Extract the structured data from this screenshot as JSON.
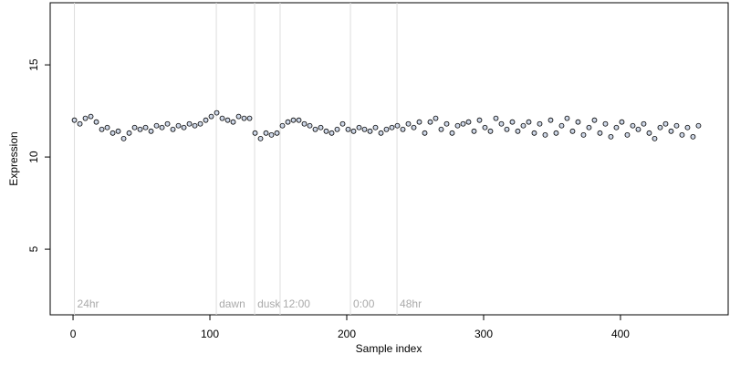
{
  "chart_data": {
    "type": "scatter",
    "x_label": "Sample index",
    "y_label": "Expression",
    "xlim": [
      -16.7,
      478.7
    ],
    "ylim": [
      1.44,
      18.37
    ],
    "xticks": [
      0,
      100,
      200,
      300,
      400
    ],
    "yticks": [
      5,
      10,
      15
    ],
    "color": "#cfd8e8",
    "markers": [
      {
        "x": 1,
        "label": "24hr"
      },
      {
        "x": 104.7,
        "label": "dawn"
      },
      {
        "x": 132.7,
        "label": "dusk"
      },
      {
        "x": 151.3,
        "label": "12:00"
      },
      {
        "x": 202.7,
        "label": "0:00"
      },
      {
        "x": 236.7,
        "label": "48hr"
      }
    ],
    "x": [
      1,
      5,
      9,
      13,
      17,
      21,
      25,
      29,
      33,
      37,
      41,
      45,
      49,
      53,
      57,
      61,
      65,
      69,
      73,
      77,
      81,
      85,
      89,
      93,
      97,
      101,
      105,
      109,
      113,
      117,
      121,
      125,
      129,
      133,
      137,
      141,
      145,
      149,
      153,
      157,
      161,
      165,
      169,
      173,
      177,
      181,
      185,
      189,
      193,
      197,
      201,
      205,
      209,
      213,
      217,
      221,
      225,
      229,
      233,
      237,
      241,
      245,
      249,
      253,
      257,
      261,
      265,
      269,
      273,
      277,
      281,
      285,
      289,
      293,
      297,
      301,
      305,
      309,
      313,
      317,
      321,
      325,
      329,
      333,
      337,
      341,
      345,
      349,
      353,
      357,
      361,
      365,
      369,
      373,
      377,
      381,
      385,
      389,
      393,
      397,
      401,
      405,
      409,
      413,
      417,
      421,
      425,
      429,
      433,
      437,
      441,
      445,
      449,
      453,
      457
    ],
    "y": [
      12.0,
      11.8,
      12.1,
      12.2,
      11.9,
      11.5,
      11.6,
      11.3,
      11.4,
      11.0,
      11.3,
      11.6,
      11.5,
      11.6,
      11.4,
      11.7,
      11.6,
      11.8,
      11.5,
      11.7,
      11.6,
      11.8,
      11.7,
      11.8,
      12.0,
      12.2,
      12.4,
      12.1,
      12.0,
      11.9,
      12.2,
      12.1,
      12.1,
      11.3,
      11.0,
      11.3,
      11.2,
      11.3,
      11.7,
      11.9,
      12.0,
      12.0,
      11.8,
      11.7,
      11.5,
      11.6,
      11.4,
      11.3,
      11.5,
      11.8,
      11.5,
      11.4,
      11.6,
      11.5,
      11.4,
      11.6,
      11.3,
      11.5,
      11.6,
      11.7,
      11.5,
      11.8,
      11.6,
      11.9,
      11.3,
      11.9,
      12.1,
      11.5,
      11.8,
      11.3,
      11.7,
      11.8,
      11.9,
      11.4,
      12.0,
      11.6,
      11.4,
      12.1,
      11.8,
      11.5,
      11.9,
      11.4,
      11.7,
      11.9,
      11.3,
      11.8,
      11.2,
      12.0,
      11.3,
      11.7,
      12.1,
      11.4,
      11.9,
      11.2,
      11.6,
      12.0,
      11.3,
      11.8,
      11.1,
      11.6,
      11.9,
      11.2,
      11.7,
      11.5,
      11.8,
      11.3,
      11.0,
      11.6,
      11.8,
      11.4,
      11.7,
      11.2,
      11.6,
      11.1,
      11.7
    ]
  }
}
